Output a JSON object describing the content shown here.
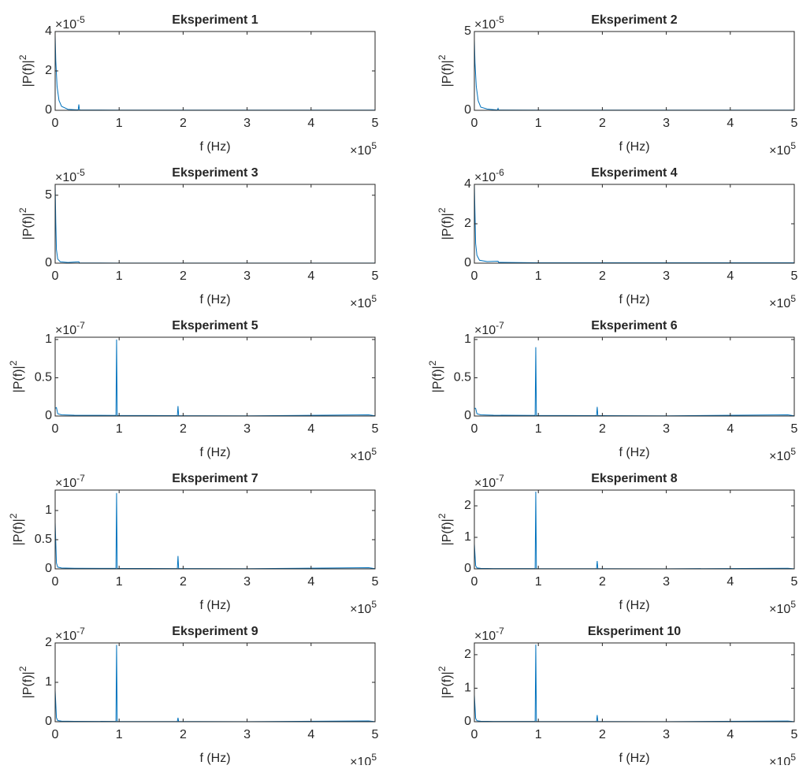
{
  "chart_data": [
    {
      "type": "line",
      "title": "Eksperiment 1",
      "xlabel": "f (Hz)",
      "ylabel": "|P(f)|",
      "ylabel_superscript": "2",
      "x_multiplier": "×10",
      "x_exponent": "5",
      "y_multiplier": "×10",
      "y_exponent": "-5",
      "color": "#0072bd",
      "xlim": [
        0,
        500000
      ],
      "xticks": [
        0,
        {
          "value": 100000,
          "label": "1"
        },
        {
          "value": 200000,
          "label": "2"
        },
        {
          "value": 300000,
          "label": "3"
        },
        {
          "value": 400000,
          "label": "4"
        },
        {
          "value": 500000,
          "label": "5"
        }
      ],
      "ylim": [
        0,
        4e-05
      ],
      "yticks": [
        0,
        {
          "value": 2e-05,
          "label": "2"
        },
        {
          "value": 4e-05,
          "label": "4"
        }
      ],
      "x": [
        0,
        1000,
        3000,
        6000,
        10000,
        20000,
        36000,
        37000,
        38000,
        100000,
        500000
      ],
      "values": [
        3.8e-05,
        2.5e-05,
        1.2e-05,
        5e-06,
        2e-06,
        5e-07,
        2e-07,
        3e-06,
        2e-07,
        1e-07,
        1e-07
      ]
    },
    {
      "type": "line",
      "title": "Eksperiment 2",
      "xlabel": "f (Hz)",
      "ylabel": "|P(f)|",
      "ylabel_superscript": "2",
      "x_multiplier": "×10",
      "x_exponent": "5",
      "y_multiplier": "×10",
      "y_exponent": "-5",
      "color": "#0072bd",
      "xlim": [
        0,
        500000
      ],
      "xticks": [
        0,
        {
          "value": 100000,
          "label": "1"
        },
        {
          "value": 200000,
          "label": "2"
        },
        {
          "value": 300000,
          "label": "3"
        },
        {
          "value": 400000,
          "label": "4"
        },
        {
          "value": 500000,
          "label": "5"
        }
      ],
      "ylim": [
        0,
        5e-05
      ],
      "yticks": [
        0,
        {
          "value": 5e-05,
          "label": "5"
        }
      ],
      "x": [
        0,
        1000,
        3000,
        6000,
        10000,
        20000,
        36000,
        37000,
        38000,
        100000,
        500000
      ],
      "values": [
        4.5e-05,
        3e-05,
        1.5e-05,
        6e-06,
        2e-06,
        8e-07,
        2e-07,
        1.2e-06,
        2e-07,
        1e-07,
        1e-07
      ]
    },
    {
      "type": "line",
      "title": "Eksperiment 3",
      "xlabel": "f (Hz)",
      "ylabel": "|P(f)|",
      "ylabel_superscript": "2",
      "x_multiplier": "×10",
      "x_exponent": "5",
      "y_multiplier": "×10",
      "y_exponent": "-5",
      "color": "#0072bd",
      "xlim": [
        0,
        500000
      ],
      "xticks": [
        0,
        {
          "value": 100000,
          "label": "1"
        },
        {
          "value": 200000,
          "label": "2"
        },
        {
          "value": 300000,
          "label": "3"
        },
        {
          "value": 400000,
          "label": "4"
        },
        {
          "value": 500000,
          "label": "5"
        }
      ],
      "ylim": [
        0,
        5.8e-05
      ],
      "yticks": [
        0,
        {
          "value": 5e-05,
          "label": "5"
        }
      ],
      "x": [
        0,
        1000,
        2000,
        4000,
        8000,
        20000,
        37000,
        38000,
        100000,
        500000
      ],
      "values": [
        5.8e-05,
        3e-05,
        1e-05,
        3e-06,
        1e-06,
        5e-07,
        1e-06,
        2e-07,
        1e-07,
        1e-07
      ]
    },
    {
      "type": "line",
      "title": "Eksperiment 4",
      "xlabel": "f (Hz)",
      "ylabel": "|P(f)|",
      "ylabel_superscript": "2",
      "x_multiplier": "×10",
      "x_exponent": "5",
      "y_multiplier": "×10",
      "y_exponent": "-6",
      "color": "#0072bd",
      "xlim": [
        0,
        500000
      ],
      "xticks": [
        0,
        {
          "value": 100000,
          "label": "1"
        },
        {
          "value": 200000,
          "label": "2"
        },
        {
          "value": 300000,
          "label": "3"
        },
        {
          "value": 400000,
          "label": "4"
        },
        {
          "value": 500000,
          "label": "5"
        }
      ],
      "ylim": [
        0,
        4e-06
      ],
      "yticks": [
        0,
        {
          "value": 2e-06,
          "label": "2"
        },
        {
          "value": 4e-06,
          "label": "4"
        }
      ],
      "x": [
        0,
        1000,
        2000,
        4000,
        8000,
        20000,
        37000,
        38000,
        100000,
        500000
      ],
      "values": [
        4e-06,
        2.5e-06,
        1e-06,
        4e-07,
        1.5e-07,
        8e-08,
        1e-07,
        4e-08,
        2e-08,
        2e-08
      ]
    },
    {
      "type": "line",
      "title": "Eksperiment 5",
      "xlabel": "f (Hz)",
      "ylabel": "|P(f)|",
      "ylabel_superscript": "2",
      "x_multiplier": "×10",
      "x_exponent": "5",
      "y_multiplier": "×10",
      "y_exponent": "-7",
      "color": "#0072bd",
      "xlim": [
        0,
        500000
      ],
      "xticks": [
        0,
        {
          "value": 100000,
          "label": "1"
        },
        {
          "value": 200000,
          "label": "2"
        },
        {
          "value": 300000,
          "label": "3"
        },
        {
          "value": 400000,
          "label": "4"
        },
        {
          "value": 500000,
          "label": "5"
        }
      ],
      "ylim": [
        0,
        1.03e-07
      ],
      "yticks": [
        0,
        {
          "value": 5e-08,
          "label": "0.5"
        },
        {
          "value": 1e-07,
          "label": "1"
        }
      ],
      "x": [
        0,
        2000,
        4000,
        10000,
        30000,
        95000,
        96000,
        97000,
        191000,
        192000,
        193000,
        300000,
        490000,
        500000
      ],
      "values": [
        1e-08,
        1.1e-08,
        3e-09,
        1.5e-09,
        1e-09,
        8e-10,
        1e-07,
        8e-10,
        5e-10,
        1.3e-08,
        5e-10,
        3e-10,
        1.5e-09,
        3e-10
      ]
    },
    {
      "type": "line",
      "title": "Eksperiment 6",
      "xlabel": "f (Hz)",
      "ylabel": "|P(f)|",
      "ylabel_superscript": "2",
      "x_multiplier": "×10",
      "x_exponent": "5",
      "y_multiplier": "×10",
      "y_exponent": "-7",
      "color": "#0072bd",
      "xlim": [
        0,
        500000
      ],
      "xticks": [
        0,
        {
          "value": 100000,
          "label": "1"
        },
        {
          "value": 200000,
          "label": "2"
        },
        {
          "value": 300000,
          "label": "3"
        },
        {
          "value": 400000,
          "label": "4"
        },
        {
          "value": 500000,
          "label": "5"
        }
      ],
      "ylim": [
        0,
        1.03e-07
      ],
      "yticks": [
        0,
        {
          "value": 5e-08,
          "label": "0.5"
        },
        {
          "value": 1e-07,
          "label": "1"
        }
      ],
      "x": [
        0,
        2000,
        4000,
        10000,
        30000,
        95000,
        96000,
        97000,
        191000,
        192000,
        193000,
        300000,
        490000,
        500000
      ],
      "values": [
        1e-08,
        1e-08,
        3e-09,
        1.5e-09,
        1e-09,
        8e-10,
        9e-08,
        8e-10,
        5e-10,
        1.2e-08,
        5e-10,
        3e-10,
        1.5e-09,
        3e-10
      ]
    },
    {
      "type": "line",
      "title": "Eksperiment 7",
      "xlabel": "f (Hz)",
      "ylabel": "|P(f)|",
      "ylabel_superscript": "2",
      "x_multiplier": "×10",
      "x_exponent": "5",
      "y_multiplier": "×10",
      "y_exponent": "-7",
      "color": "#0072bd",
      "xlim": [
        0,
        500000
      ],
      "xticks": [
        0,
        {
          "value": 100000,
          "label": "1"
        },
        {
          "value": 200000,
          "label": "2"
        },
        {
          "value": 300000,
          "label": "3"
        },
        {
          "value": 400000,
          "label": "4"
        },
        {
          "value": 500000,
          "label": "5"
        }
      ],
      "ylim": [
        0,
        1.35e-07
      ],
      "yticks": [
        0,
        {
          "value": 5e-08,
          "label": "0.5"
        },
        {
          "value": 1e-07,
          "label": "1"
        }
      ],
      "x": [
        0,
        2000,
        4000,
        10000,
        30000,
        95000,
        96000,
        97000,
        191000,
        192000,
        193000,
        300000,
        490000,
        500000
      ],
      "values": [
        8e-08,
        1e-08,
        3e-09,
        1.5e-09,
        1e-09,
        8e-10,
        1.3e-07,
        8e-10,
        5e-10,
        2.2e-08,
        5e-10,
        3e-10,
        2e-09,
        3e-10
      ]
    },
    {
      "type": "line",
      "title": "Eksperiment 8",
      "xlabel": "f (Hz)",
      "ylabel": "|P(f)|",
      "ylabel_superscript": "2",
      "x_multiplier": "×10",
      "x_exponent": "5",
      "y_multiplier": "×10",
      "y_exponent": "-7",
      "color": "#0072bd",
      "xlim": [
        0,
        500000
      ],
      "xticks": [
        0,
        {
          "value": 100000,
          "label": "1"
        },
        {
          "value": 200000,
          "label": "2"
        },
        {
          "value": 300000,
          "label": "3"
        },
        {
          "value": 400000,
          "label": "4"
        },
        {
          "value": 500000,
          "label": "5"
        }
      ],
      "ylim": [
        0,
        2.5e-07
      ],
      "yticks": [
        0,
        {
          "value": 1e-07,
          "label": "1"
        },
        {
          "value": 2e-07,
          "label": "2"
        }
      ],
      "x": [
        0,
        2000,
        4000,
        10000,
        30000,
        95000,
        96000,
        97000,
        191000,
        192000,
        193000,
        300000,
        490000,
        500000
      ],
      "values": [
        8e-08,
        1e-08,
        3e-09,
        1.5e-09,
        1e-09,
        8e-10,
        2.45e-07,
        8e-10,
        5e-10,
        2.5e-08,
        5e-10,
        3e-10,
        2e-09,
        3e-10
      ]
    },
    {
      "type": "line",
      "title": "Eksperiment 9",
      "xlabel": "f (Hz)",
      "ylabel": "|P(f)|",
      "ylabel_superscript": "2",
      "x_multiplier": "×10",
      "x_exponent": "5",
      "y_multiplier": "×10",
      "y_exponent": "-7",
      "color": "#0072bd",
      "xlim": [
        0,
        500000
      ],
      "xticks": [
        0,
        {
          "value": 100000,
          "label": "1"
        },
        {
          "value": 200000,
          "label": "2"
        },
        {
          "value": 300000,
          "label": "3"
        },
        {
          "value": 400000,
          "label": "4"
        },
        {
          "value": 500000,
          "label": "5"
        }
      ],
      "ylim": [
        0,
        2e-07
      ],
      "yticks": [
        0,
        {
          "value": 1e-07,
          "label": "1"
        },
        {
          "value": 2e-07,
          "label": "2"
        }
      ],
      "x": [
        0,
        2000,
        4000,
        10000,
        30000,
        95000,
        96000,
        97000,
        191000,
        192000,
        193000,
        300000,
        490000,
        500000
      ],
      "values": [
        8e-08,
        1e-08,
        3e-09,
        1.5e-09,
        1e-09,
        8e-10,
        1.95e-07,
        8e-10,
        5e-10,
        1e-08,
        5e-10,
        3e-10,
        2e-09,
        3e-10
      ]
    },
    {
      "type": "line",
      "title": "Eksperiment 10",
      "xlabel": "f (Hz)",
      "ylabel": "|P(f)|",
      "ylabel_superscript": "2",
      "x_multiplier": "×10",
      "x_exponent": "5",
      "y_multiplier": "×10",
      "y_exponent": "-7",
      "color": "#0072bd",
      "xlim": [
        0,
        500000
      ],
      "xticks": [
        0,
        {
          "value": 100000,
          "label": "1"
        },
        {
          "value": 200000,
          "label": "2"
        },
        {
          "value": 300000,
          "label": "3"
        },
        {
          "value": 400000,
          "label": "4"
        },
        {
          "value": 500000,
          "label": "5"
        }
      ],
      "ylim": [
        0,
        2.35e-07
      ],
      "yticks": [
        0,
        {
          "value": 1e-07,
          "label": "1"
        },
        {
          "value": 2e-07,
          "label": "2"
        }
      ],
      "x": [
        0,
        2000,
        4000,
        10000,
        30000,
        95000,
        96000,
        97000,
        191000,
        192000,
        193000,
        300000,
        490000,
        500000
      ],
      "values": [
        8e-08,
        1e-08,
        3e-09,
        1.5e-09,
        1e-09,
        8e-10,
        2.3e-07,
        8e-10,
        5e-10,
        2e-08,
        5e-10,
        3e-10,
        2e-09,
        3e-10
      ]
    }
  ]
}
